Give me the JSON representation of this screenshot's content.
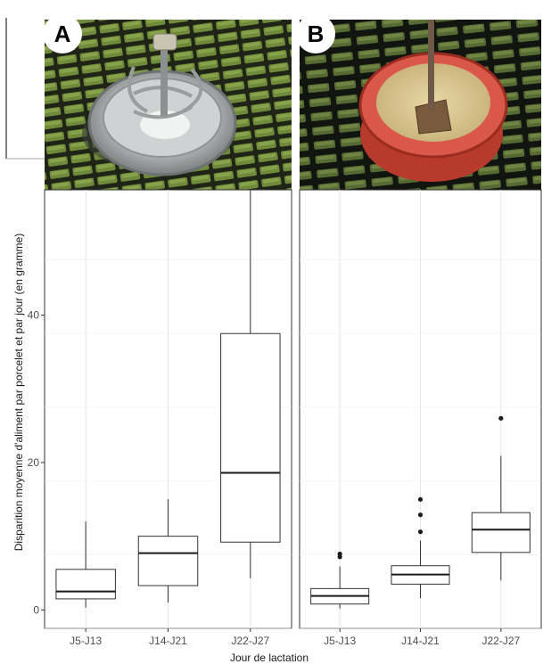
{
  "panels": [
    {
      "label": "A",
      "image": "round-metal-feeder-photo"
    },
    {
      "label": "B",
      "image": "red-feeder-with-feed-photo"
    }
  ],
  "chart_data": {
    "type": "box",
    "xlabel": "Jour de lactation",
    "ylabel": "Disparition moyenne d'aliment par porcelet et par jour (en gramme)",
    "ylim": [
      -2.5,
      57
    ],
    "yticks": [
      0,
      20,
      40
    ],
    "categories": [
      "J5-J13",
      "J14-J21",
      "J22-J27"
    ],
    "grid": true,
    "panels": [
      {
        "label": "A",
        "boxes": [
          {
            "category": "J5-J13",
            "min": 0.3,
            "q1": 1.5,
            "median": 2.5,
            "q3": 5.5,
            "max": 12.0,
            "outliers": []
          },
          {
            "category": "J14-J21",
            "min": 1.0,
            "q1": 3.3,
            "median": 7.7,
            "q3": 10.0,
            "max": 15.0,
            "outliers": []
          },
          {
            "category": "J22-J27",
            "min": 4.3,
            "q1": 9.2,
            "median": 18.6,
            "q3": 37.5,
            "max": 57.0,
            "outliers": []
          }
        ]
      },
      {
        "label": "B",
        "boxes": [
          {
            "category": "J5-J13",
            "min": 0.2,
            "q1": 0.8,
            "median": 1.9,
            "q3": 2.9,
            "max": 5.9,
            "outliers": [
              7.2,
              7.6
            ]
          },
          {
            "category": "J14-J21",
            "min": 1.6,
            "q1": 3.5,
            "median": 4.8,
            "q3": 6.0,
            "max": 9.4,
            "outliers": [
              10.6,
              12.9,
              15.0
            ]
          },
          {
            "category": "J22-J27",
            "min": 4.0,
            "q1": 7.8,
            "median": 10.9,
            "q3": 13.2,
            "max": 20.9,
            "outliers": [
              26.0
            ]
          }
        ]
      }
    ]
  }
}
